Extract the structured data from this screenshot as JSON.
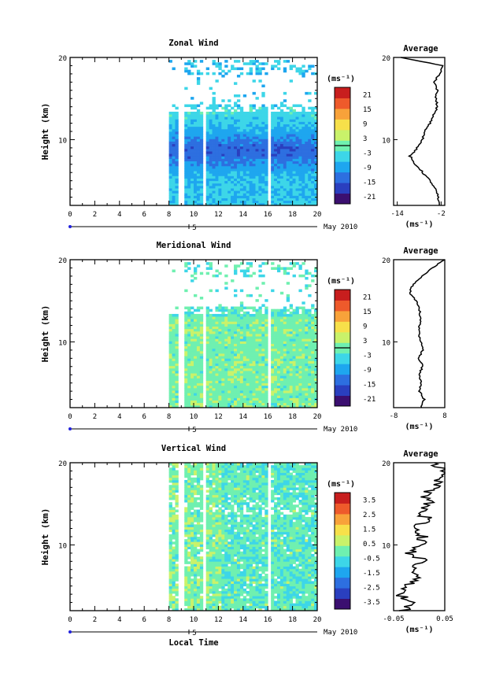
{
  "common": {
    "ylabel": "Height (km)",
    "x_ticks": [
      "0",
      "2",
      "4",
      "6",
      "8",
      "10",
      "12",
      "14",
      "16",
      "18",
      "20"
    ],
    "y_ticks": [
      "10",
      "20"
    ],
    "day_label": "5",
    "month_label": "May 2010",
    "xlabel": "Local Time",
    "unit_label": "(ms⁻¹)",
    "average_title": "Average",
    "colormap": [
      "#3b0f70",
      "#2a3fbf",
      "#2d6fe0",
      "#1ea6ef",
      "#3dd6e8",
      "#6ff0b0",
      "#c9f26a",
      "#f7e04a",
      "#f8a23a",
      "#ee5a2b",
      "#c81e1e"
    ]
  },
  "chart_data": [
    {
      "type": "heatmap",
      "title": "Zonal Wind",
      "ylabel": "Height (km)",
      "xlabel": "",
      "x_range": [
        0,
        20
      ],
      "y_range": [
        2,
        20
      ],
      "data_start_hour": 8,
      "data_gaps_hours": [
        [
          8.8,
          9.3
        ],
        [
          10.8,
          11.1
        ],
        [
          16.0,
          16.3
        ]
      ],
      "value_range": [
        -24,
        24
      ],
      "colorbar_ticks": [
        "21",
        "15",
        "9",
        "3",
        "-3",
        "-9",
        "-15",
        "-21"
      ],
      "zero_contour": true,
      "profile": {
        "title": "Average",
        "xlabel": "(ms⁻¹)",
        "x_ticks": [
          "-14",
          "-2"
        ],
        "xlim": [
          -15,
          -1
        ],
        "height_km": [
          2,
          3,
          4,
          5,
          6,
          7,
          8,
          9,
          10,
          11,
          12,
          13,
          14,
          15,
          16,
          17,
          18,
          19,
          20
        ],
        "values": [
          -2.5,
          -2.8,
          -3.5,
          -5,
          -7,
          -9,
          -10.5,
          -8.5,
          -7,
          -6.5,
          -5,
          -4,
          -3,
          -3.5,
          -3,
          -4,
          -2.5,
          -1.5,
          -13
        ]
      }
    },
    {
      "type": "heatmap",
      "title": "Meridional Wind",
      "ylabel": "Height (km)",
      "xlabel": "",
      "x_range": [
        0,
        20
      ],
      "y_range": [
        2,
        20
      ],
      "data_start_hour": 8,
      "data_gaps_hours": [
        [
          8.8,
          9.3
        ],
        [
          10.8,
          11.1
        ],
        [
          16.0,
          16.3
        ]
      ],
      "value_range": [
        -24,
        24
      ],
      "colorbar_ticks": [
        "21",
        "15",
        "9",
        "3",
        "-3",
        "-9",
        "-15",
        "-21"
      ],
      "zero_contour": true,
      "profile": {
        "title": "Average",
        "xlabel": "(ms⁻¹)",
        "x_ticks": [
          "-8",
          "8"
        ],
        "xlim": [
          -8,
          8
        ],
        "height_km": [
          2,
          3,
          4,
          5,
          6,
          7,
          8,
          9,
          10,
          11,
          12,
          13,
          14,
          15,
          16,
          17,
          18,
          19,
          20
        ],
        "values": [
          0.5,
          1.5,
          0,
          0.5,
          0,
          1,
          0,
          1,
          0.5,
          0,
          0,
          0.5,
          0,
          -1,
          -3,
          -2,
          1,
          4,
          8
        ]
      }
    },
    {
      "type": "heatmap",
      "title": "Vertical Wind",
      "ylabel": "Height (km)",
      "xlabel": "Local Time",
      "x_range": [
        0,
        20
      ],
      "y_range": [
        2,
        20
      ],
      "data_start_hour": 8,
      "data_gaps_hours": [
        [
          8.8,
          9.3
        ],
        [
          10.8,
          11.1
        ],
        [
          16.0,
          16.3
        ]
      ],
      "value_range": [
        -4,
        4
      ],
      "colorbar_ticks": [
        "3.5",
        "2.5",
        "1.5",
        "0.5",
        "-0.5",
        "-1.5",
        "-2.5",
        "-3.5"
      ],
      "zero_contour": false,
      "profile": {
        "title": "Average",
        "xlabel": "(ms⁻¹)",
        "x_ticks": [
          "-0.05",
          "0.05"
        ],
        "xlim": [
          -0.05,
          0.05
        ],
        "height_km": [
          2,
          3,
          4,
          5,
          6,
          7,
          8,
          9,
          10,
          11,
          12,
          13,
          14,
          15,
          16,
          17,
          18,
          19,
          20
        ],
        "values": [
          -0.03,
          -0.01,
          -0.04,
          -0.02,
          0.0,
          -0.01,
          0.01,
          -0.02,
          0.0,
          0.01,
          -0.01,
          0.02,
          0.0,
          0.02,
          0.01,
          0.03,
          0.04,
          0.05,
          0.03
        ]
      }
    }
  ]
}
